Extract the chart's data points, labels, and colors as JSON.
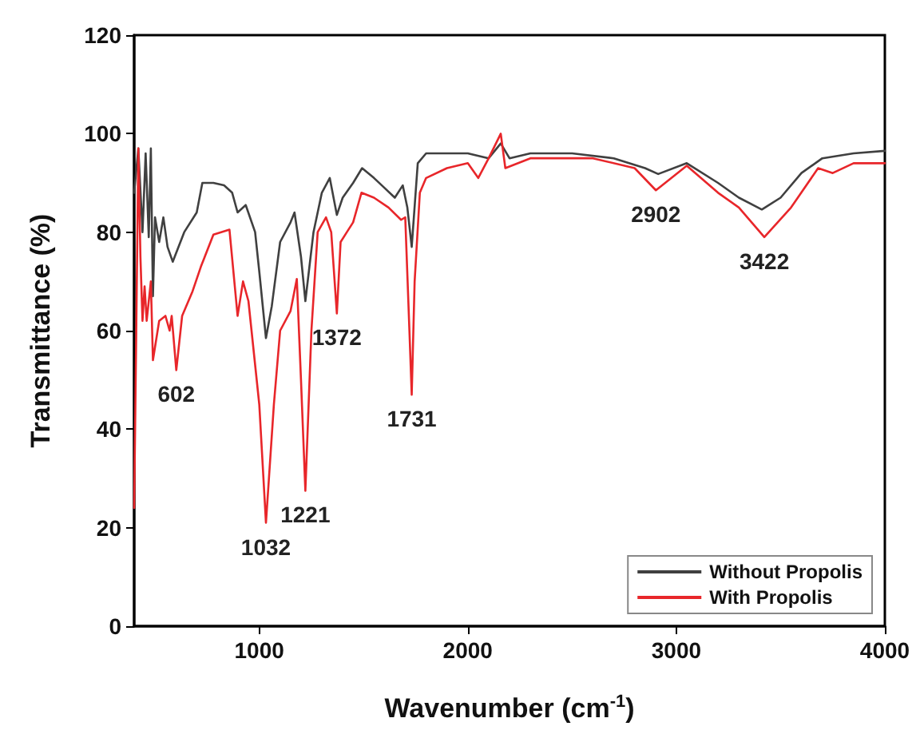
{
  "chart_data": {
    "type": "line",
    "xlabel": "Wavenumber (cm$^{-1}$)",
    "ylabel": "Transmittance (%)",
    "xlim": [
      400,
      4000
    ],
    "xticks": [
      1000,
      2000,
      3000,
      4000
    ],
    "ylim": [
      0,
      120
    ],
    "yticks": [
      0,
      20,
      40,
      60,
      80,
      100,
      120
    ],
    "grid": false,
    "legend": "bottom right",
    "marker": "none",
    "line_style": "solid",
    "annotations": [
      {
        "text": "602",
        "x": 602,
        "y": 52
      },
      {
        "text": "1032",
        "x": 1032,
        "y": 21
      },
      {
        "text": "1221",
        "x": 1221,
        "y": 27.5
      },
      {
        "text": "1372",
        "x": 1372,
        "y": 63.5
      },
      {
        "text": "1731",
        "x": 1731,
        "y": 47
      },
      {
        "text": "2902",
        "x": 2902,
        "y": 88.5
      },
      {
        "text": "3422",
        "x": 3422,
        "y": 79
      }
    ],
    "series": [
      {
        "name": "Without Propolis",
        "color": "#404040",
        "x": [
          400,
          420,
          440,
          455,
          470,
          480,
          490,
          500,
          520,
          540,
          560,
          585,
          640,
          700,
          727,
          780,
          831,
          870,
          896,
          935,
          980,
          1000,
          1032,
          1060,
          1100,
          1150,
          1169,
          1200,
          1221,
          1260,
          1300,
          1338,
          1372,
          1400,
          1450,
          1493,
          1550,
          1600,
          1650,
          1688,
          1710,
          1731,
          1760,
          1800,
          1900,
          2000,
          2100,
          2158,
          2200,
          2300,
          2500,
          2700,
          2850,
          2913,
          3050,
          3200,
          3300,
          3410,
          3500,
          3600,
          3700,
          3850,
          4000
        ],
        "values": [
          88,
          97,
          80,
          96,
          79,
          97,
          67,
          83,
          78,
          83,
          77,
          74,
          80,
          84,
          90,
          90,
          89.5,
          88,
          84,
          85.5,
          80,
          72,
          58.5,
          65,
          78,
          82,
          84,
          75,
          66,
          80,
          88,
          91,
          83.5,
          87,
          90,
          93,
          91,
          89,
          87,
          89.5,
          85,
          77,
          94,
          96,
          96,
          96,
          95,
          98,
          95,
          96,
          96,
          95,
          93,
          91.8,
          94,
          90,
          87,
          84.6,
          87,
          92,
          95,
          96,
          96.5
        ]
      },
      {
        "name": "With Propolis",
        "color": "#e8262a",
        "x": [
          400,
          410,
          420,
          430,
          440,
          450,
          460,
          480,
          490,
          520,
          550,
          570,
          580,
          602,
          630,
          680,
          720,
          780,
          857,
          896,
          922,
          948,
          1000,
          1032,
          1070,
          1100,
          1150,
          1180,
          1200,
          1221,
          1250,
          1280,
          1320,
          1345,
          1372,
          1390,
          1420,
          1450,
          1490,
          1550,
          1620,
          1680,
          1700,
          1720,
          1731,
          1745,
          1770,
          1800,
          1900,
          2000,
          2050,
          2100,
          2158,
          2180,
          2300,
          2600,
          2800,
          2902,
          3050,
          3200,
          3300,
          3422,
          3550,
          3680,
          3750,
          3850,
          4000
        ],
        "values": [
          24,
          60,
          97,
          75,
          62,
          69,
          62,
          70,
          54,
          62,
          63,
          60,
          63,
          52,
          63,
          68,
          73,
          79.5,
          80.5,
          63,
          70,
          66,
          45,
          21,
          45,
          60,
          64,
          70.5,
          50,
          27.5,
          60,
          80,
          83,
          80,
          63.5,
          78,
          80,
          82,
          88,
          87,
          85,
          82.5,
          83,
          60,
          47,
          70,
          88,
          91,
          93,
          94,
          91,
          95,
          100,
          93,
          95,
          95,
          93,
          88.5,
          93.5,
          88,
          85,
          79,
          85,
          93,
          92,
          94,
          94
        ]
      }
    ]
  }
}
